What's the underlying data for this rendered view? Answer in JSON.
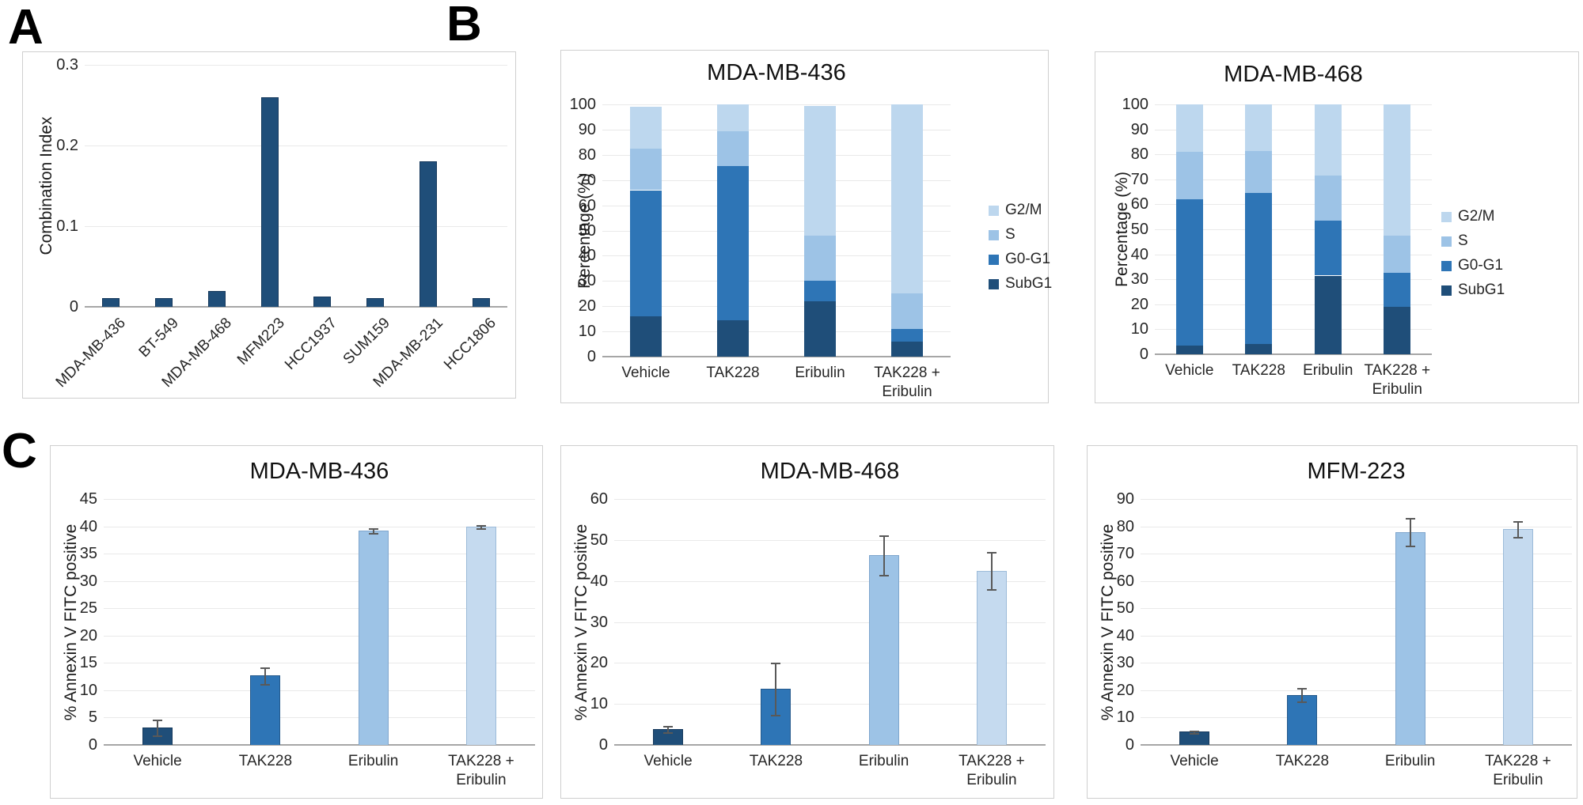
{
  "panels": {
    "a": "A",
    "b": "B",
    "c": "C"
  },
  "colors": {
    "subg1": "#1F4E79",
    "g0g1": "#2E75B6",
    "s_phase": "#9DC3E6",
    "g2m": "#BDD7EE",
    "combo_bar": "#C5DAEF",
    "gridline": "#e9e9e9",
    "axis_line": "#a6a6a6",
    "box_border": "#cfcfcf",
    "error_bar": "#595959"
  },
  "chart_data": [
    {
      "id": "A",
      "type": "bar",
      "panel": "A",
      "title": "",
      "ylabel": "Combination Index",
      "ymax": 0.3,
      "yticks": [
        0,
        0.1,
        0.2,
        0.3
      ],
      "ytick_labels": [
        "0",
        "0.1",
        "0.2",
        "0.3"
      ],
      "categories": [
        "MDA-MB-436",
        "BT-549",
        "MDA-MB-468",
        "MFM223",
        "HCC1937",
        "SUM159",
        "MDA-MB-231",
        "HCC1806"
      ],
      "values": [
        0.011,
        0.011,
        0.02,
        0.26,
        0.013,
        0.011,
        0.18,
        0.011
      ],
      "bar_color": "#1F4E79",
      "grid": true,
      "legend_position": "none"
    },
    {
      "id": "B1",
      "type": "stacked",
      "panel": "B",
      "title": "MDA-MB-436",
      "ylabel": "Percentage (%)",
      "ymax": 100,
      "yticks": [
        0,
        10,
        20,
        30,
        40,
        50,
        60,
        70,
        80,
        90,
        100
      ],
      "ytick_labels": [
        "0",
        "10",
        "20",
        "30",
        "40",
        "50",
        "60",
        "70",
        "80",
        "90",
        "100"
      ],
      "categories": [
        "Vehicle",
        "TAK228",
        "Eribulin",
        "TAK228 + Eribulin"
      ],
      "series": [
        {
          "name": "SubG1",
          "color": "#1F4E79",
          "values": [
            16,
            14.5,
            22,
            6
          ]
        },
        {
          "name": "G0-G1",
          "color": "#2E75B6",
          "values": [
            50,
            61,
            8,
            5
          ]
        },
        {
          "name": "S",
          "color": "#9DC3E6",
          "values": [
            16.5,
            14,
            18,
            14
          ]
        },
        {
          "name": "G2/M",
          "color": "#BDD7EE",
          "values": [
            16.5,
            10.5,
            51.5,
            75
          ]
        }
      ],
      "legend": [
        {
          "label": "G2/M",
          "color": "#BDD7EE"
        },
        {
          "label": "S",
          "color": "#9DC3E6"
        },
        {
          "label": "G0-G1",
          "color": "#2E75B6"
        },
        {
          "label": "SubG1",
          "color": "#1F4E79"
        }
      ],
      "legend_position": "right"
    },
    {
      "id": "B2",
      "type": "stacked",
      "panel": "B",
      "title": "MDA-MB-468",
      "ylabel": "Percentage (%)",
      "ymax": 100,
      "yticks": [
        0,
        10,
        20,
        30,
        40,
        50,
        60,
        70,
        80,
        90,
        100
      ],
      "ytick_labels": [
        "0",
        "10",
        "20",
        "30",
        "40",
        "50",
        "60",
        "70",
        "80",
        "90",
        "100"
      ],
      "categories": [
        "Vehicle",
        "TAK228",
        "Eribulin",
        "TAK228 + Eribulin"
      ],
      "series": [
        {
          "name": "SubG1",
          "color": "#1F4E79",
          "values": [
            3.5,
            4,
            31.5,
            19
          ]
        },
        {
          "name": "G0-G1",
          "color": "#2E75B6",
          "values": [
            58.5,
            60.5,
            22,
            13.5
          ]
        },
        {
          "name": "S",
          "color": "#9DC3E6",
          "values": [
            19,
            17,
            18,
            15
          ]
        },
        {
          "name": "G2/M",
          "color": "#BDD7EE",
          "values": [
            19,
            18.5,
            28.5,
            52.5
          ]
        }
      ],
      "legend": [
        {
          "label": "G2/M",
          "color": "#BDD7EE"
        },
        {
          "label": "S",
          "color": "#9DC3E6"
        },
        {
          "label": "G0-G1",
          "color": "#2E75B6"
        },
        {
          "label": "SubG1",
          "color": "#1F4E79"
        }
      ],
      "legend_position": "right"
    },
    {
      "id": "C1",
      "type": "bar-error",
      "panel": "C",
      "title": "MDA-MB-436",
      "ylabel": "% Annexin V FITC positive",
      "ymax": 45,
      "yticks": [
        0,
        5,
        10,
        15,
        20,
        25,
        30,
        35,
        40,
        45
      ],
      "ytick_labels": [
        "0",
        "5",
        "10",
        "15",
        "20",
        "25",
        "30",
        "35",
        "40",
        "45"
      ],
      "categories": [
        "Vehicle",
        "TAK228",
        "Eribulin",
        "TAK228 + Eribulin"
      ],
      "values": [
        3.2,
        12.7,
        39.2,
        40
      ],
      "errors": [
        1.4,
        1.5,
        0.4,
        0.3
      ],
      "bar_colors": [
        "#1F4E79",
        "#2E75B6",
        "#9DC3E6",
        "#C5DAEF"
      ],
      "legend_position": "none"
    },
    {
      "id": "C2",
      "type": "bar-error",
      "panel": "C",
      "title": "MDA-MB-468",
      "ylabel": "% Annexin V FITC positive",
      "ymax": 60,
      "yticks": [
        0,
        10,
        20,
        30,
        40,
        50,
        60
      ],
      "ytick_labels": [
        "0",
        "10",
        "20",
        "30",
        "40",
        "50",
        "60"
      ],
      "categories": [
        "Vehicle",
        "TAK228",
        "Eribulin",
        "TAK228 + Eribulin"
      ],
      "values": [
        3.8,
        13.7,
        46.3,
        42.5
      ],
      "errors": [
        0.8,
        6.3,
        4.8,
        4.5
      ],
      "bar_colors": [
        "#1F4E79",
        "#2E75B6",
        "#9DC3E6",
        "#C5DAEF"
      ],
      "legend_position": "none"
    },
    {
      "id": "C3",
      "type": "bar-error",
      "panel": "C",
      "title": "MFM-223",
      "ylabel": "% Annexin V FITC positive",
      "ymax": 90,
      "yticks": [
        0,
        10,
        20,
        30,
        40,
        50,
        60,
        70,
        80,
        90
      ],
      "ytick_labels": [
        "0",
        "10",
        "20",
        "30",
        "40",
        "50",
        "60",
        "70",
        "80",
        "90"
      ],
      "categories": [
        "Vehicle",
        "TAK228",
        "Eribulin",
        "TAK228 + Eribulin"
      ],
      "values": [
        4.8,
        18.3,
        78,
        79
      ],
      "errors": [
        0.5,
        2.5,
        5,
        3
      ],
      "bar_colors": [
        "#1F4E79",
        "#2E75B6",
        "#9DC3E6",
        "#C5DAEF"
      ],
      "legend_position": "none"
    }
  ]
}
